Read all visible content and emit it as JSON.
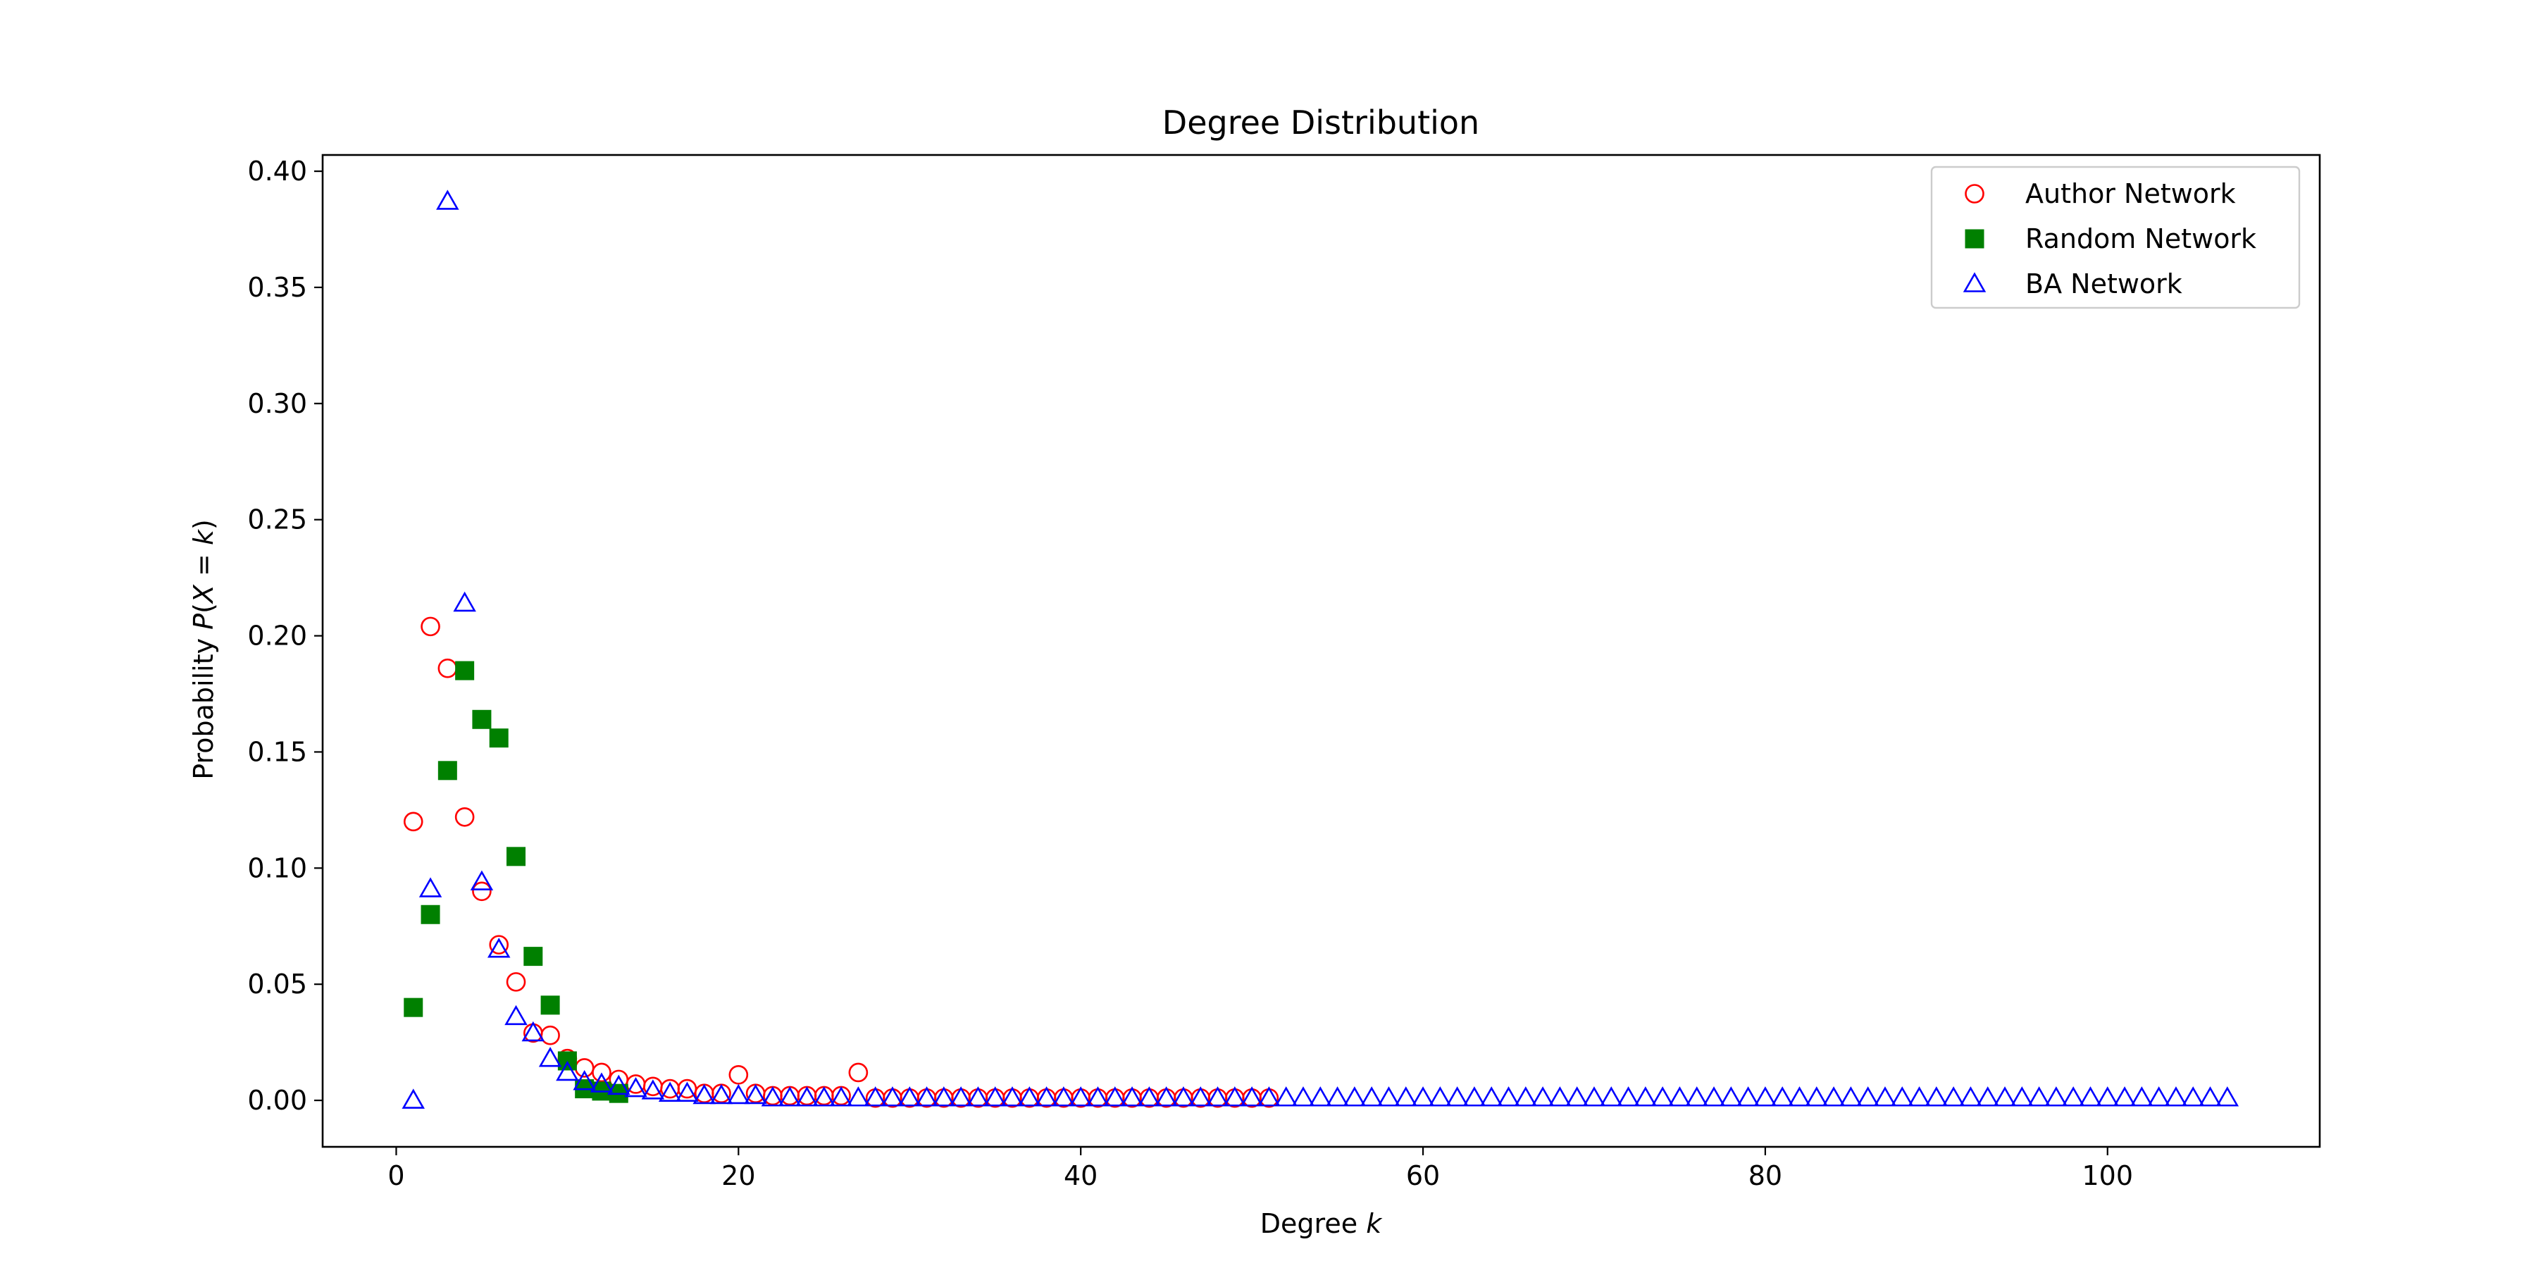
{
  "chart_data": {
    "type": "scatter",
    "title": "Degree Distribution",
    "xlabel": "Degree k",
    "xlabel_parts": [
      "Degree ",
      "k"
    ],
    "ylabel": "Probability P(X = k)",
    "ylabel_parts": [
      "Probability ",
      "P",
      "(",
      "X",
      " = ",
      "k",
      ")"
    ],
    "xlim": [
      -4.3,
      112.4
    ],
    "ylim": [
      -0.02,
      0.407
    ],
    "xticks": [
      0,
      20,
      40,
      60,
      80,
      100
    ],
    "xtick_labels": [
      "0",
      "20",
      "40",
      "60",
      "80",
      "100"
    ],
    "yticks": [
      0.0,
      0.05,
      0.1,
      0.15,
      0.2,
      0.25,
      0.3,
      0.35,
      0.4
    ],
    "ytick_labels": [
      "0.00",
      "0.05",
      "0.10",
      "0.15",
      "0.20",
      "0.25",
      "0.30",
      "0.35",
      "0.40"
    ],
    "grid": false,
    "legend_position": "top-right",
    "series": [
      {
        "name": "Author Network",
        "marker": "circle-open",
        "color": "#ff0000",
        "x": [
          1,
          2,
          3,
          4,
          5,
          6,
          7,
          8,
          9,
          10,
          11,
          12,
          13,
          14,
          15,
          16,
          17,
          18,
          19,
          20,
          21,
          22,
          23,
          24,
          25,
          26,
          27,
          28,
          29,
          30,
          31,
          32,
          33,
          34,
          35,
          36,
          37,
          38,
          39,
          40,
          41,
          42,
          43,
          44,
          45,
          46,
          47,
          48,
          49,
          50,
          51
        ],
        "y": [
          0.12,
          0.204,
          0.186,
          0.122,
          0.09,
          0.067,
          0.051,
          0.029,
          0.028,
          0.018,
          0.014,
          0.012,
          0.009,
          0.007,
          0.006,
          0.005,
          0.005,
          0.003,
          0.003,
          0.011,
          0.003,
          0.002,
          0.002,
          0.002,
          0.002,
          0.002,
          0.012,
          0.001,
          0.001,
          0.001,
          0.001,
          0.001,
          0.001,
          0.001,
          0.001,
          0.001,
          0.001,
          0.001,
          0.001,
          0.001,
          0.001,
          0.001,
          0.001,
          0.001,
          0.001,
          0.001,
          0.001,
          0.001,
          0.001,
          0.001,
          0.001
        ]
      },
      {
        "name": "Random Network",
        "marker": "square-filled",
        "color": "#008000",
        "x": [
          1,
          2,
          3,
          4,
          5,
          6,
          7,
          8,
          9,
          10,
          11,
          12,
          13
        ],
        "y": [
          0.04,
          0.08,
          0.142,
          0.185,
          0.164,
          0.156,
          0.105,
          0.062,
          0.041,
          0.017,
          0.005,
          0.004,
          0.003
        ]
      },
      {
        "name": "BA Network",
        "marker": "triangle-open",
        "color": "#0000ff",
        "x": [
          1,
          2,
          3,
          4,
          5,
          6,
          7,
          8,
          9,
          10,
          11,
          12,
          13,
          14,
          15,
          16,
          17,
          18,
          19,
          20,
          21,
          22,
          23,
          24,
          25,
          26,
          27,
          28,
          29,
          30,
          31,
          32,
          33,
          34,
          35,
          36,
          37,
          38,
          39,
          40,
          41,
          42,
          43,
          44,
          45,
          46,
          47,
          48,
          49,
          50,
          51,
          52,
          53,
          54,
          55,
          56,
          57,
          58,
          59,
          60,
          61,
          62,
          63,
          64,
          65,
          66,
          67,
          68,
          69,
          70,
          71,
          72,
          73,
          74,
          75,
          76,
          77,
          78,
          79,
          80,
          81,
          82,
          83,
          84,
          85,
          86,
          87,
          88,
          89,
          90,
          91,
          92,
          93,
          94,
          95,
          96,
          97,
          98,
          99,
          100,
          101,
          102,
          103,
          104,
          105,
          106,
          107
        ],
        "y": [
          0.0,
          0.091,
          0.387,
          0.214,
          0.094,
          0.065,
          0.036,
          0.029,
          0.018,
          0.012,
          0.008,
          0.007,
          0.006,
          0.005,
          0.004,
          0.003,
          0.003,
          0.002,
          0.002,
          0.002,
          0.002,
          0.001,
          0.001,
          0.001,
          0.001,
          0.001,
          0.001,
          0.001,
          0.001,
          0.001,
          0.001,
          0.001,
          0.001,
          0.001,
          0.001,
          0.001,
          0.001,
          0.001,
          0.001,
          0.001,
          0.001,
          0.001,
          0.001,
          0.001,
          0.001,
          0.001,
          0.001,
          0.001,
          0.001,
          0.001,
          0.001,
          0.001,
          0.001,
          0.001,
          0.001,
          0.001,
          0.001,
          0.001,
          0.001,
          0.001,
          0.001,
          0.001,
          0.001,
          0.001,
          0.001,
          0.001,
          0.001,
          0.001,
          0.001,
          0.001,
          0.001,
          0.001,
          0.001,
          0.001,
          0.001,
          0.001,
          0.001,
          0.001,
          0.001,
          0.001,
          0.001,
          0.001,
          0.001,
          0.001,
          0.001,
          0.001,
          0.001,
          0.001,
          0.001,
          0.001,
          0.001,
          0.001,
          0.001,
          0.001,
          0.001,
          0.001,
          0.001,
          0.001,
          0.001,
          0.001,
          0.001,
          0.001,
          0.001,
          0.001,
          0.001,
          0.001,
          0.001
        ]
      }
    ]
  }
}
